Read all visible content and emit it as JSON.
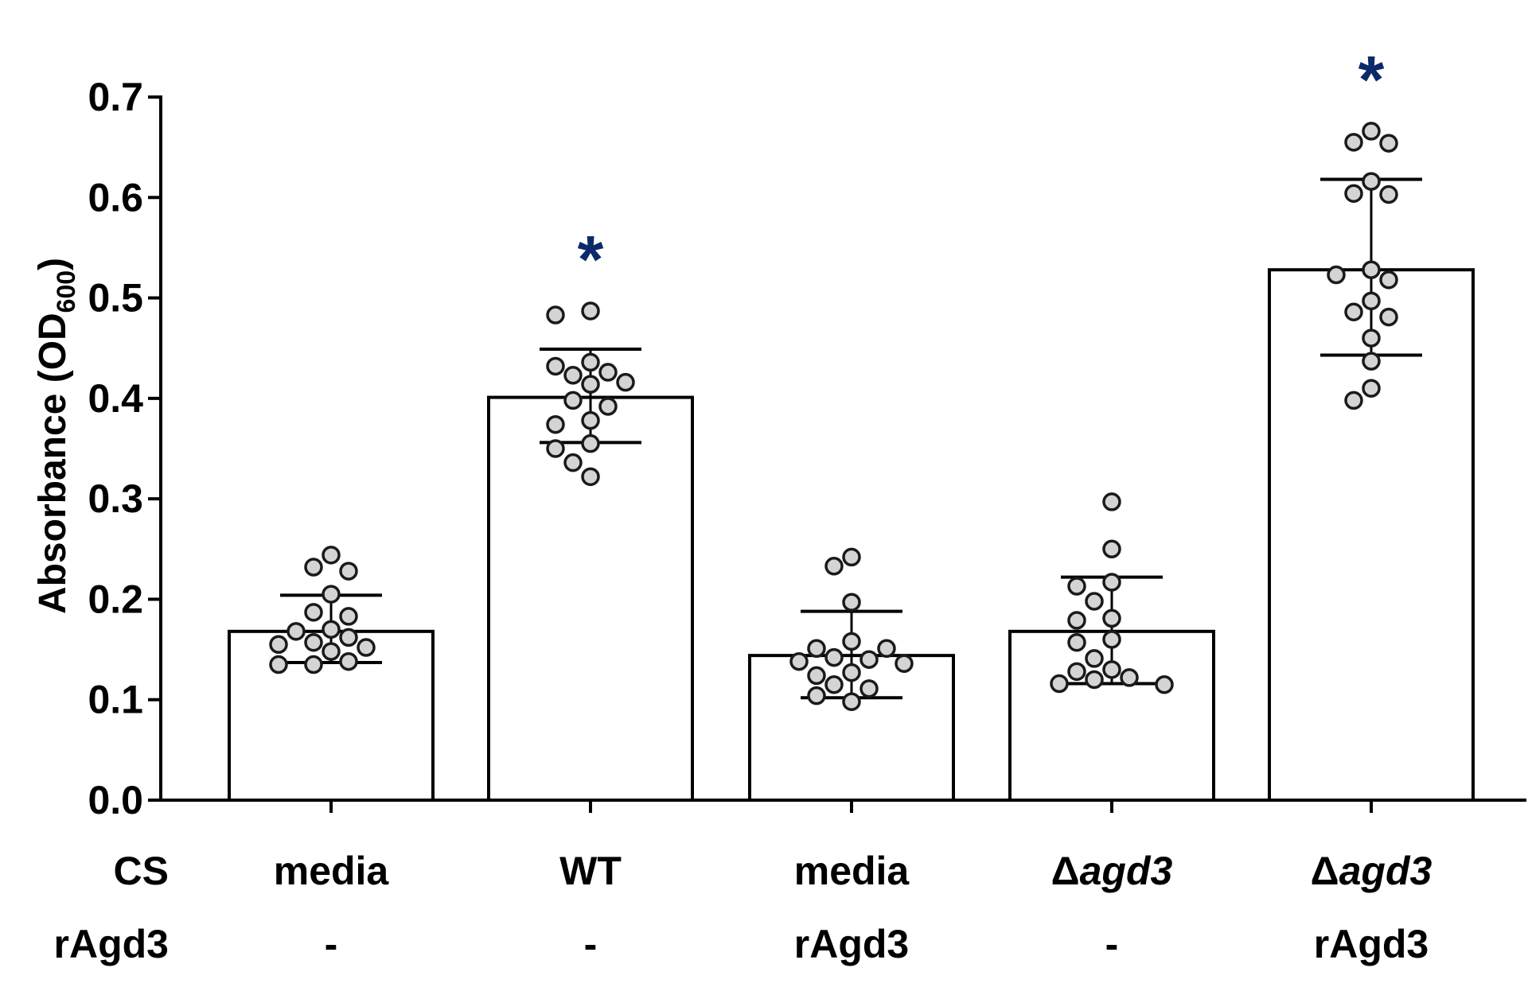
{
  "chart_data": {
    "type": "bar",
    "title": "",
    "xlabel": "",
    "ylabel_main": "Absorbance (OD",
    "ylabel_sub": "600",
    "ylabel_close": ")",
    "ylim": [
      0,
      0.7
    ],
    "yticks": [
      "0.0",
      "0.1",
      "0.2",
      "0.3",
      "0.4",
      "0.5",
      "0.6",
      "0.7"
    ],
    "row_labels": {
      "cs": "CS",
      "ragd3": "rAgd3"
    },
    "significance_marker": "*",
    "marker_color": "#0b2a6b",
    "point_fill": "#d4d4d4",
    "groups": [
      {
        "cs": "media",
        "cs_italic": false,
        "ragd3": "-",
        "mean": 0.168,
        "sd_low": 0.137,
        "sd_high": 0.204,
        "significant": false,
        "points": [
          0.244,
          0.232,
          0.228,
          0.205,
          0.187,
          0.183,
          0.17,
          0.168,
          0.162,
          0.157,
          0.155,
          0.152,
          0.148,
          0.138,
          0.135,
          0.135
        ]
      },
      {
        "cs": "WT",
        "cs_italic": false,
        "ragd3": "-",
        "mean": 0.401,
        "sd_low": 0.356,
        "sd_high": 0.449,
        "significant": true,
        "points": [
          0.487,
          0.483,
          0.436,
          0.432,
          0.426,
          0.423,
          0.416,
          0.414,
          0.398,
          0.392,
          0.378,
          0.374,
          0.355,
          0.35,
          0.336,
          0.322
        ]
      },
      {
        "cs": "media",
        "cs_italic": false,
        "ragd3": "rAgd3",
        "mean": 0.144,
        "sd_low": 0.102,
        "sd_high": 0.188,
        "significant": false,
        "points": [
          0.242,
          0.233,
          0.197,
          0.158,
          0.151,
          0.151,
          0.142,
          0.14,
          0.138,
          0.136,
          0.127,
          0.124,
          0.115,
          0.111,
          0.104,
          0.098
        ]
      },
      {
        "cs": "Δagd3",
        "cs_prefix": "Δ",
        "cs_italic_part": "agd3",
        "cs_italic": true,
        "ragd3": "-",
        "mean": 0.168,
        "sd_low": 0.116,
        "sd_high": 0.222,
        "significant": false,
        "points": [
          0.297,
          0.25,
          0.217,
          0.213,
          0.198,
          0.181,
          0.179,
          0.16,
          0.157,
          0.141,
          0.13,
          0.128,
          0.122,
          0.12,
          0.116,
          0.115
        ]
      },
      {
        "cs": "Δagd3",
        "cs_prefix": "Δ",
        "cs_italic_part": "agd3",
        "cs_italic": true,
        "ragd3": "rAgd3",
        "mean": 0.528,
        "sd_low": 0.443,
        "sd_high": 0.618,
        "significant": true,
        "points": [
          0.666,
          0.655,
          0.654,
          0.616,
          0.604,
          0.603,
          0.528,
          0.523,
          0.518,
          0.497,
          0.486,
          0.481,
          0.46,
          0.437,
          0.41,
          0.398
        ]
      }
    ]
  }
}
